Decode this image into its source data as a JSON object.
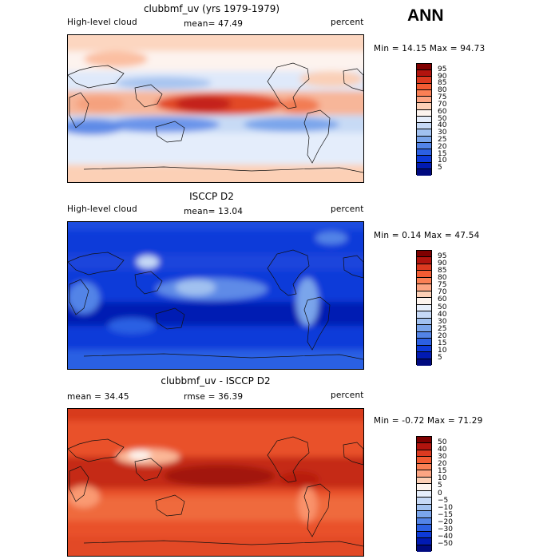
{
  "season": "ANN",
  "panels": [
    {
      "title": "clubbmf_uv (yrs 1979-1979)",
      "left_label": "High-level cloud",
      "center_label": "mean=  47.49",
      "right_label": "percent",
      "minmax": "Min =  14.15 Max =  94.73",
      "colorbar": {
        "colors": [
          "#7f0000",
          "#b2140e",
          "#dc3a20",
          "#f25c33",
          "#fa8055",
          "#fca583",
          "#fdd0b6",
          "#fdf4ee",
          "#e6eefb",
          "#c6d9f6",
          "#a1c1f0",
          "#7aa5eb",
          "#5384e7",
          "#2c60e3",
          "#0d3ad9",
          "#011ab3",
          "#000a80"
        ],
        "labels": [
          "95",
          "90",
          "85",
          "80",
          "75",
          "70",
          "60",
          "50",
          "40",
          "30",
          "25",
          "20",
          "15",
          "10",
          "5"
        ]
      }
    },
    {
      "title": "ISCCP D2",
      "left_label": "High-level cloud",
      "center_label": "mean=  13.04",
      "right_label": "percent",
      "minmax": "Min =   0.14 Max =  47.54",
      "colorbar": {
        "colors": [
          "#7f0000",
          "#b2140e",
          "#dc3a20",
          "#f25c33",
          "#fa8055",
          "#fca583",
          "#fdd0b6",
          "#fdf4ee",
          "#e6eefb",
          "#c6d9f6",
          "#a1c1f0",
          "#7aa5eb",
          "#5384e7",
          "#2c60e3",
          "#0d3ad9",
          "#011ab3",
          "#000a80"
        ],
        "labels": [
          "95",
          "90",
          "85",
          "80",
          "75",
          "70",
          "60",
          "50",
          "40",
          "30",
          "25",
          "20",
          "15",
          "10",
          "5"
        ]
      }
    },
    {
      "title": "clubbmf_uv - ISCCP D2",
      "left_label": "mean =  34.45",
      "center_label": "rmse =  36.39",
      "right_label": "percent",
      "minmax": "Min =  -0.72 Max =  71.29",
      "colorbar": {
        "colors": [
          "#7f0000",
          "#b2140e",
          "#dc3a20",
          "#f25c33",
          "#fa8055",
          "#fca583",
          "#fdd0b6",
          "#fdf4ee",
          "#e6eefb",
          "#c6d9f6",
          "#a1c1f0",
          "#7aa5eb",
          "#5384e7",
          "#2c60e3",
          "#0d3ad9",
          "#011ab3",
          "#000a80"
        ],
        "labels": [
          "50",
          "40",
          "30",
          "20",
          "15",
          "10",
          "5",
          "0",
          "−5",
          "−10",
          "−15",
          "−20",
          "−30",
          "−40",
          "−50"
        ]
      }
    }
  ]
}
